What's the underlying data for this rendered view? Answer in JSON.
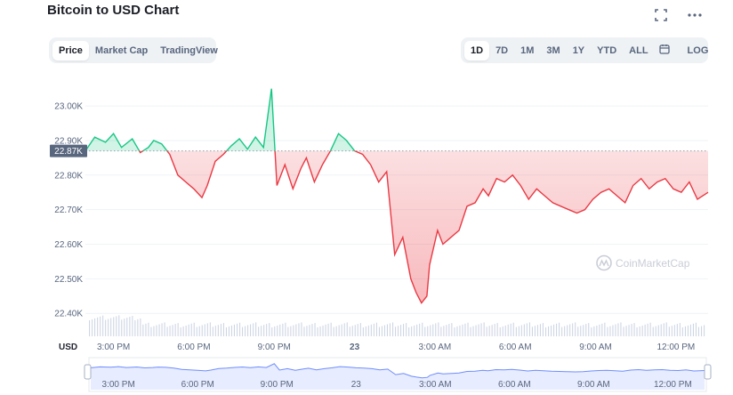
{
  "header": {
    "title": "Bitcoin to USD Chart"
  },
  "tabs": [
    {
      "label": "Price",
      "active": true
    },
    {
      "label": "Market Cap",
      "active": false
    },
    {
      "label": "TradingView",
      "active": false
    }
  ],
  "ranges": [
    {
      "label": "1D",
      "active": true
    },
    {
      "label": "7D",
      "active": false
    },
    {
      "label": "1M",
      "active": false
    },
    {
      "label": "3M",
      "active": false
    },
    {
      "label": "1Y",
      "active": false
    },
    {
      "label": "YTD",
      "active": false
    },
    {
      "label": "ALL",
      "active": false
    }
  ],
  "toolbar": {
    "log_label": "LOG",
    "calendar_icon": "calendar-icon",
    "fullscreen_icon": "fullscreen-icon",
    "more_icon": "more-icon"
  },
  "current_price_label": "22.87K",
  "watermark": "CoinMarketCap",
  "colors": {
    "up": "#16c784",
    "down": "#ea3943",
    "navigator": "#3861fb",
    "volume": "#cfd6e4"
  },
  "chart_data": {
    "type": "area",
    "currency_label": "USD",
    "baseline": 22870,
    "ylim": [
      22380,
      23080
    ],
    "y_ticks": [
      22400,
      22500,
      22600,
      22700,
      22800,
      22900,
      23000
    ],
    "y_tick_labels": [
      "22.40K",
      "22.50K",
      "22.60K",
      "22.70K",
      "22.80K",
      "22.90K",
      "23.00K"
    ],
    "x_tick_labels": [
      "3:00 PM",
      "6:00 PM",
      "9:00 PM",
      "23",
      "3:00 AM",
      "6:00 AM",
      "9:00 AM",
      "12:00 PM"
    ],
    "xlim": [
      -1.05,
      22.2
    ],
    "x_ticks": [
      0,
      3,
      6,
      9,
      12,
      15,
      18,
      21
    ],
    "series": [
      {
        "x": [
          -1.05,
          -0.7,
          -0.3,
          0,
          0.3,
          0.7,
          1,
          1.3,
          1.5,
          1.8,
          2.1,
          2.4,
          2.7,
          3,
          3.3,
          3.5,
          3.8,
          4.1,
          4.4,
          4.7,
          5,
          5.3,
          5.6,
          5.9,
          6.1,
          6.4,
          6.7,
          7,
          7.2,
          7.5,
          7.8,
          8.1,
          8.4,
          8.7,
          9,
          9.3,
          9.6,
          9.9,
          10.2,
          10.5,
          10.8,
          11.1,
          11.3,
          11.5,
          11.7,
          11.8,
          12.1,
          12.3,
          12.6,
          12.9,
          13.2,
          13.5,
          13.8,
          14,
          14.3,
          14.6,
          14.9,
          15.2,
          15.5,
          15.8,
          16.1,
          16.4,
          16.7,
          17,
          17.3,
          17.6,
          17.9,
          18.2,
          18.5,
          18.8,
          19.1,
          19.4,
          19.7,
          20,
          20.3,
          20.6,
          20.9,
          21.2,
          21.5,
          21.8,
          22.2
        ],
        "y": [
          22870,
          22910,
          22895,
          22920,
          22880,
          22905,
          22865,
          22880,
          22900,
          22890,
          22860,
          22800,
          22780,
          22760,
          22735,
          22770,
          22840,
          22860,
          22885,
          22905,
          22875,
          22910,
          22880,
          23050,
          22770,
          22830,
          22760,
          22820,
          22850,
          22780,
          22830,
          22870,
          22920,
          22900,
          22870,
          22860,
          22830,
          22780,
          22810,
          22570,
          22620,
          22500,
          22460,
          22430,
          22450,
          22540,
          22640,
          22600,
          22620,
          22640,
          22710,
          22720,
          22760,
          22740,
          22790,
          22780,
          22800,
          22770,
          22730,
          22760,
          22740,
          22720,
          22710,
          22700,
          22690,
          22700,
          22730,
          22750,
          22760,
          22740,
          22720,
          22770,
          22790,
          22760,
          22780,
          22790,
          22760,
          22750,
          22780,
          22730,
          22750
        ]
      }
    ],
    "volume_note": "volume bars along bottom",
    "navigator_x_tick_labels": [
      "3:00 PM",
      "6:00 PM",
      "9:00 PM",
      "23",
      "3:00 AM",
      "6:00 AM",
      "9:00 AM",
      "12:00 PM"
    ]
  }
}
